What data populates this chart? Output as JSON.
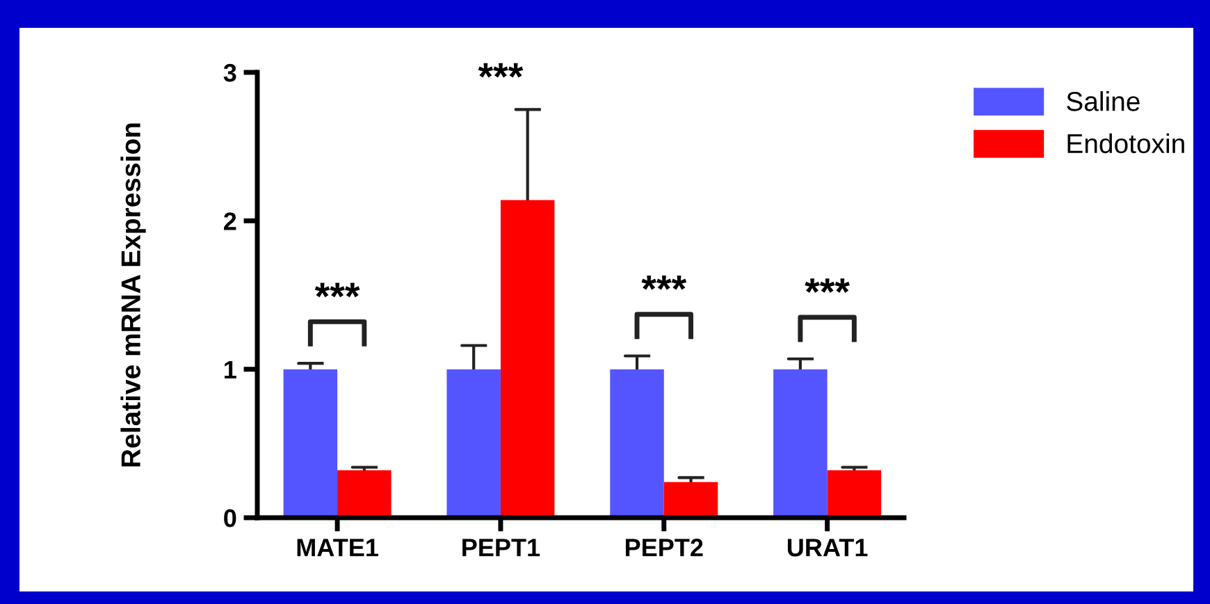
{
  "chart_data": {
    "type": "bar",
    "ylabel": "Relative mRNA Expression",
    "categories": [
      "MATE1",
      "PEPT1",
      "PEPT2",
      "URAT1"
    ],
    "series": [
      {
        "name": "Saline",
        "color": "#5555ff",
        "values": [
          1.0,
          1.0,
          1.0,
          1.0
        ],
        "errors": [
          [
            1.0,
            1.04
          ],
          [
            1.0,
            1.16
          ],
          [
            1.0,
            1.09
          ],
          [
            1.0,
            1.07
          ]
        ]
      },
      {
        "name": "Endotoxin",
        "color": "#ff0000",
        "values": [
          0.32,
          2.14,
          0.24,
          0.32
        ],
        "errors": [
          [
            0.32,
            0.34
          ],
          [
            2.14,
            2.75
          ],
          [
            0.24,
            0.27
          ],
          [
            0.32,
            0.34
          ]
        ]
      }
    ],
    "ylim": [
      0,
      3
    ],
    "yticks": [
      0,
      1,
      2,
      3
    ],
    "grid": false,
    "legend": "top right",
    "annotations": [
      "***",
      "***",
      "***",
      "***"
    ]
  }
}
